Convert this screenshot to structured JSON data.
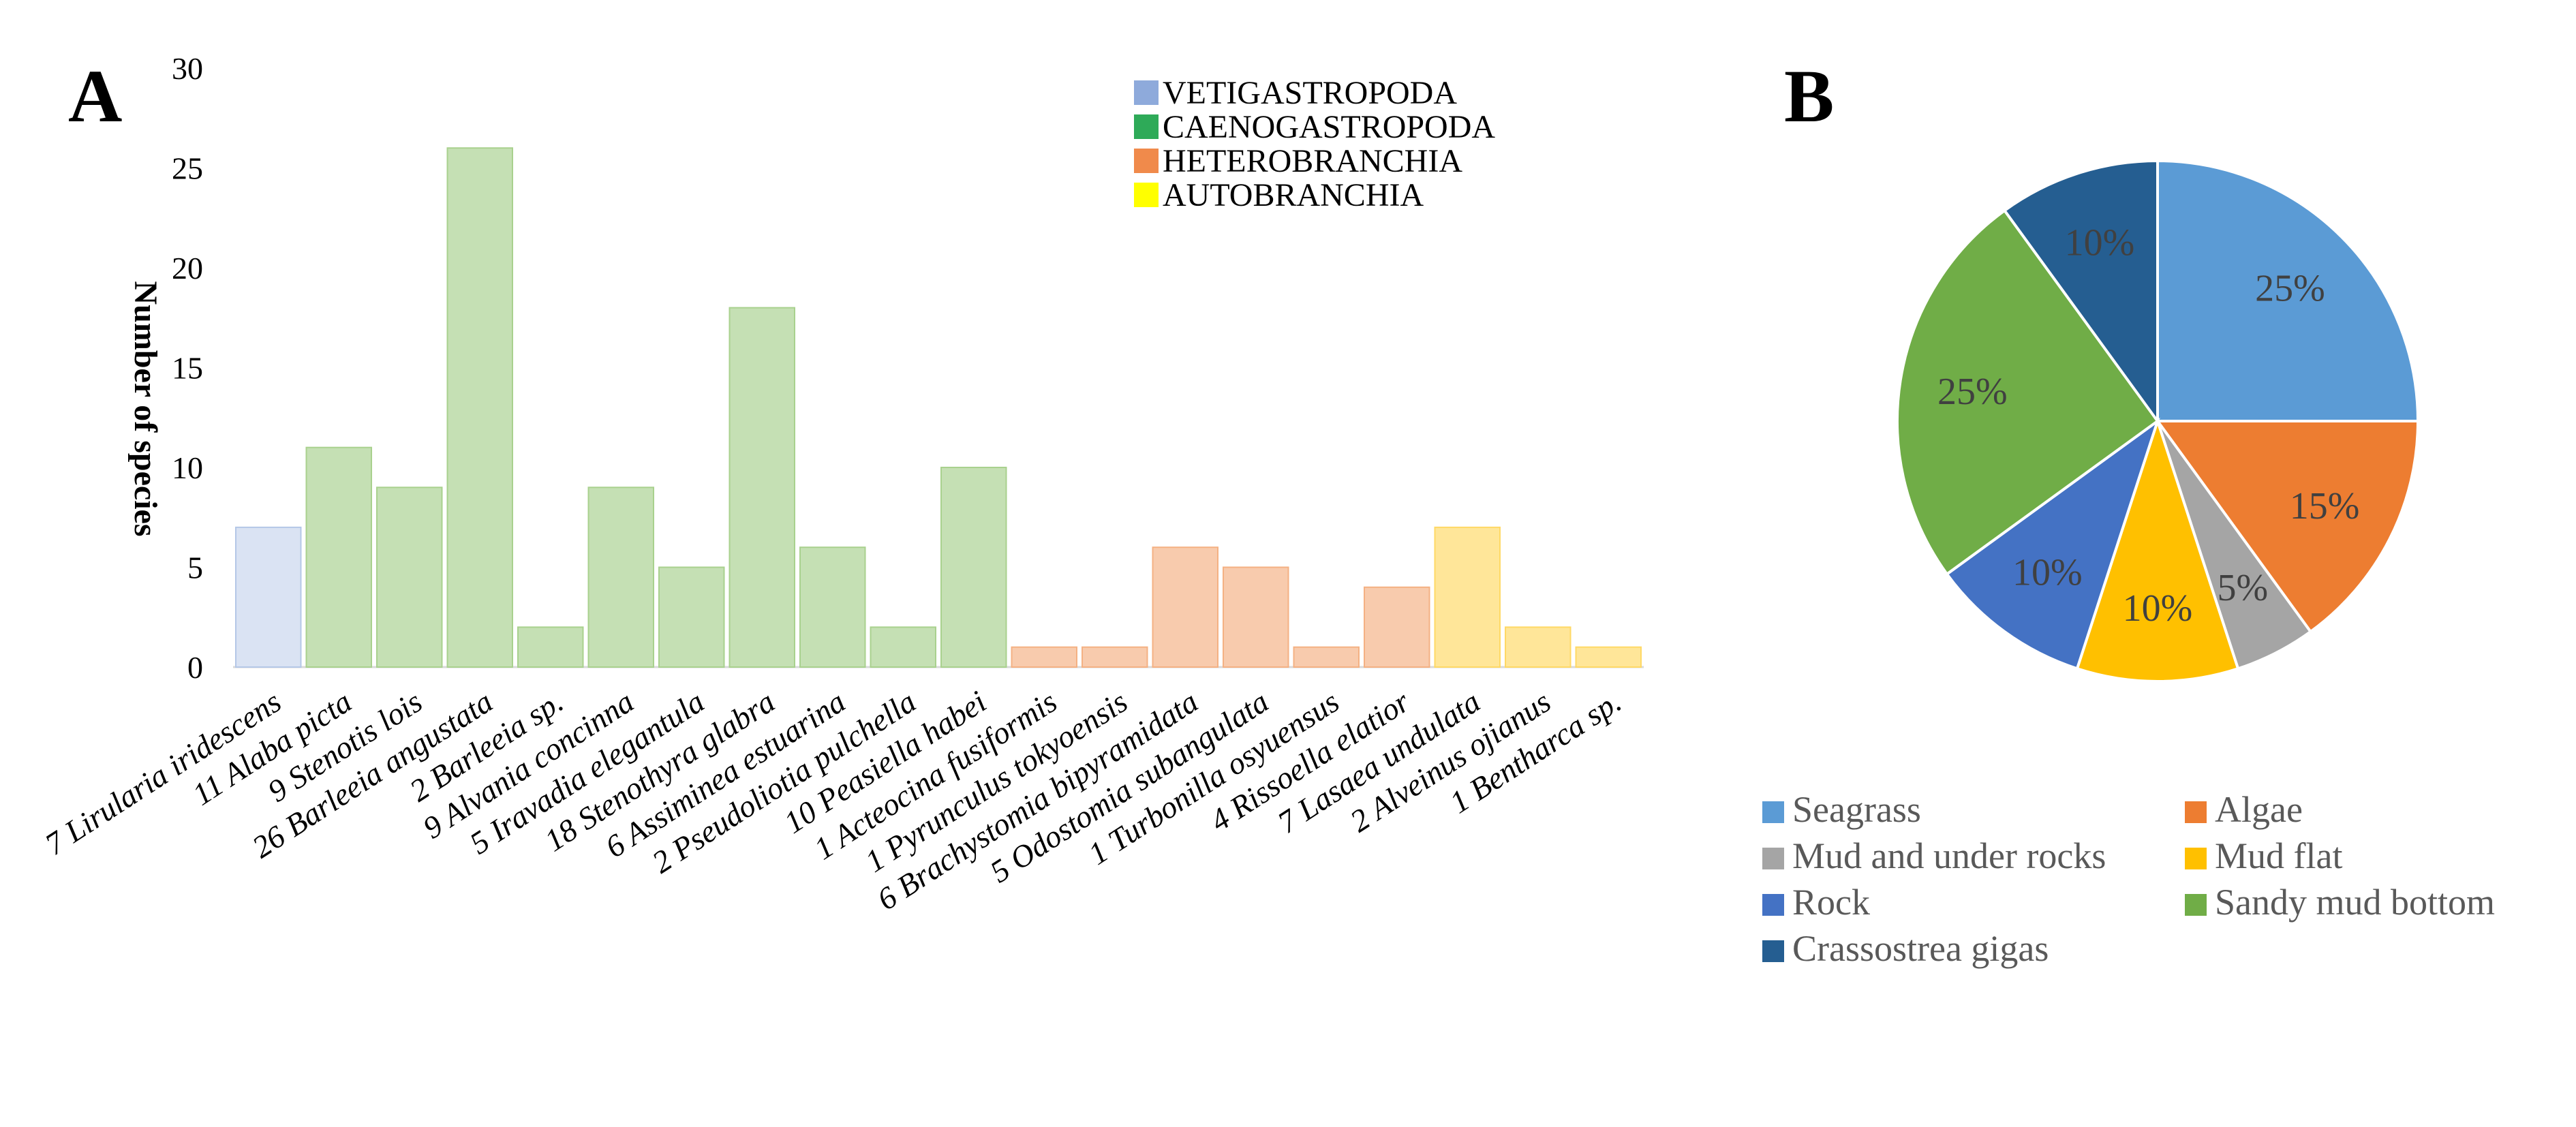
{
  "panels": {
    "a_label": "A",
    "b_label": "B"
  },
  "chart_data": [
    {
      "type": "bar",
      "title": "",
      "xlabel": "",
      "ylabel": "Number of species",
      "ylim": [
        0,
        30
      ],
      "yticks": [
        0,
        5,
        10,
        15,
        20,
        25,
        30
      ],
      "categories": [
        "7 Lirularia iridescens",
        "11 Alaba picta",
        "9 Stenotis lois",
        "26 Barleeia angustata",
        "2 Barleeia sp.",
        "9 Alvania concinna",
        "5 Iravadia elegantula",
        "18 Stenothyra glabra",
        "6 Assiminea estuarina",
        "2 Pseudoliotia pulchella",
        "10 Peasiella habei",
        "1 Acteocina fusiformis",
        "1 Pyrunculus tokyoensis",
        "6 Brachystomia bipyramidata",
        "5 Odostomia subangulata",
        "1 Turbonilla osyuensus",
        "4 Rissoella elatior",
        "7 Lasaea undulata",
        "2 Alveinus ojianus",
        "1 Bentharca sp."
      ],
      "values": [
        7,
        11,
        9,
        26,
        2,
        9,
        5,
        18,
        6,
        2,
        10,
        1,
        1,
        6,
        5,
        1,
        4,
        7,
        2,
        1
      ],
      "groups": [
        0,
        1,
        1,
        1,
        1,
        1,
        1,
        1,
        1,
        1,
        1,
        2,
        2,
        2,
        2,
        2,
        2,
        3,
        3,
        3
      ],
      "legend": {
        "placement": "top-right",
        "entries": [
          {
            "name": "VETIGASTROPODA",
            "swatch": "#8eaadb",
            "bar_fill": "#dae3f3",
            "bar_stroke": "#b4c7e7"
          },
          {
            "name": "CAENOGASTROPODA",
            "swatch": "#2eaa58",
            "bar_fill": "#c5e0b4",
            "bar_stroke": "#a9d18e"
          },
          {
            "name": "HETEROBRANCHIA",
            "swatch": "#f08a4b",
            "bar_fill": "#f8cbad",
            "bar_stroke": "#f4b183"
          },
          {
            "name": "AUTOBRANCHIA",
            "swatch": "#ffff00",
            "bar_fill": "#ffe699",
            "bar_stroke": "#ffd966"
          }
        ]
      }
    },
    {
      "type": "pie",
      "title": "",
      "slices": [
        {
          "name": "Seagrass",
          "value": 25,
          "label": "25%",
          "color": "#5b9bd5"
        },
        {
          "name": "Algae",
          "value": 15,
          "label": "15%",
          "color": "#ed7d31"
        },
        {
          "name": "Mud and under rocks",
          "value": 5,
          "label": "5%",
          "color": "#a5a5a5"
        },
        {
          "name": "Mud flat",
          "value": 10,
          "label": "10%",
          "color": "#ffc000"
        },
        {
          "name": "Rock",
          "value": 10,
          "label": "10%",
          "color": "#4472c4"
        },
        {
          "name": "Sandy mud bottom",
          "value": 25,
          "label": "25%",
          "color": "#70ad47"
        },
        {
          "name": "Crassostrea gigas",
          "value": 10,
          "label": "10%",
          "color": "#255e91"
        }
      ],
      "legend": {
        "placement": "bottom",
        "order": [
          "Seagrass",
          "Algae",
          "Mud and under rocks",
          "Mud flat",
          "Rock",
          "Sandy mud bottom",
          "Crassostrea gigas"
        ]
      }
    }
  ]
}
